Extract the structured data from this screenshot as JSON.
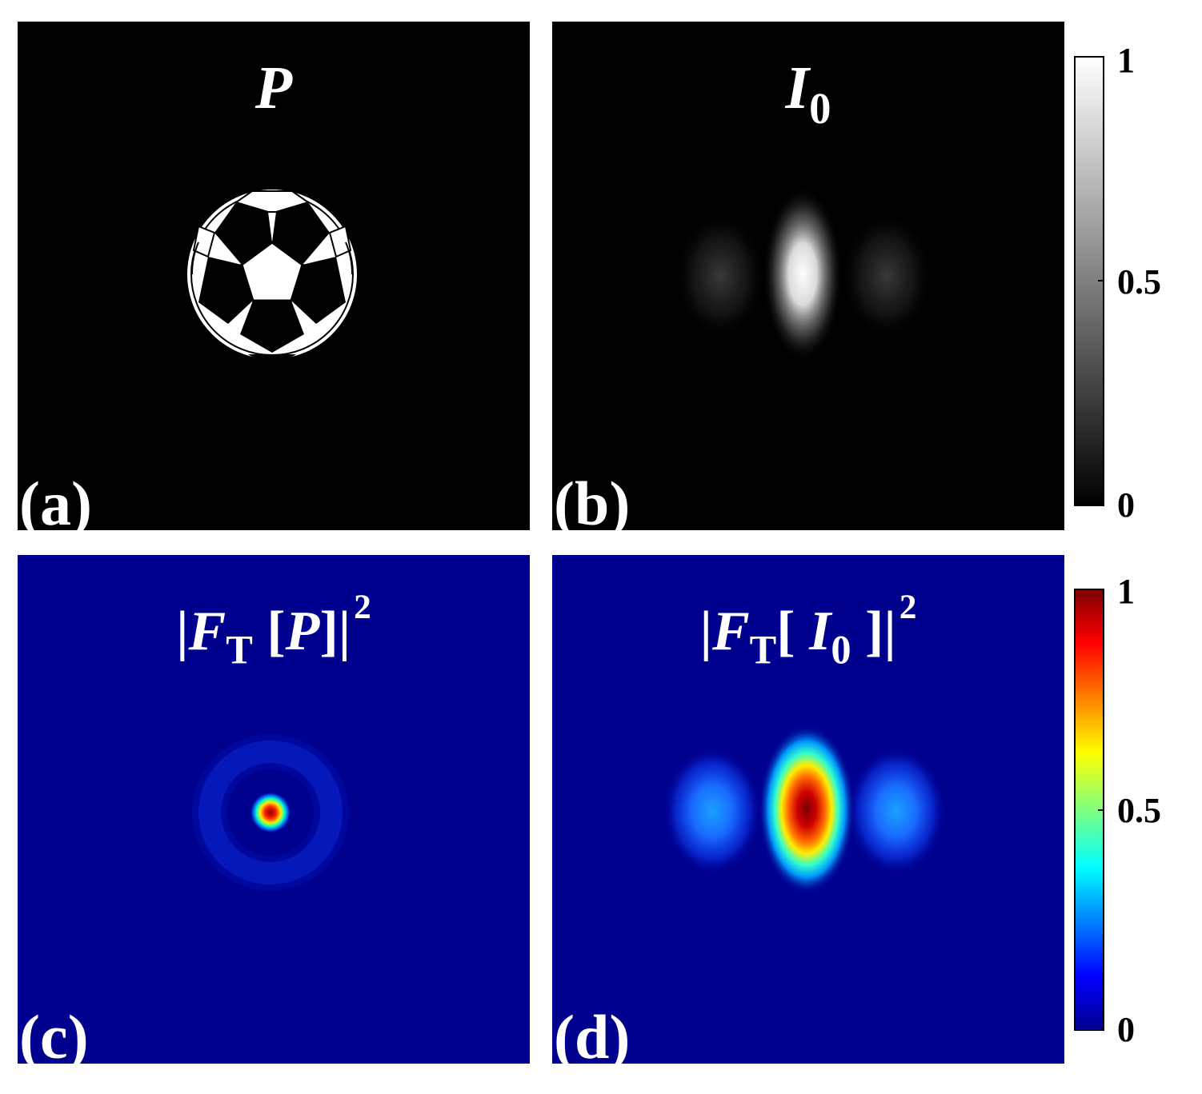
{
  "panels": [
    {
      "id": "a",
      "label": "(a)",
      "title": "P",
      "colormap": "gray"
    },
    {
      "id": "b",
      "label": "(b)",
      "title": "I",
      "title_sub": "0",
      "colormap": "gray"
    },
    {
      "id": "c",
      "label": "(c)",
      "title_pre": "|",
      "title": "F",
      "title_sub": "T",
      "title_post_open": " [",
      "title_arg": "P",
      "title_post_close": "]|",
      "title_sup": "2",
      "colormap": "jet"
    },
    {
      "id": "d",
      "label": "(d)",
      "title_pre": "|",
      "title": "F",
      "title_sub": "T",
      "title_post_open": "[ ",
      "title_arg": "I",
      "title_arg_sub": "0",
      "title_post_close": " ]|",
      "title_sup": "2",
      "colormap": "jet"
    }
  ],
  "colorbars": {
    "gray": {
      "ticks": [
        "1",
        "0.5",
        "0"
      ],
      "range": [
        0,
        1
      ],
      "colormap": "gray"
    },
    "jet": {
      "ticks": [
        "1",
        "0.5",
        "0"
      ],
      "range": [
        0,
        1
      ],
      "colormap": "jet"
    }
  },
  "chart_data": [
    {
      "type": "heatmap",
      "panel": "(a)",
      "title": "P",
      "colormap": "gray",
      "clim": [
        0,
        1
      ],
      "content": "soccer-ball binary pattern centered in field"
    },
    {
      "type": "heatmap",
      "panel": "(b)",
      "title": "I0",
      "colormap": "gray",
      "clim": [
        0,
        1
      ],
      "peaks": [
        {
          "position": "center",
          "value": 1.0
        },
        {
          "position": "left",
          "value": 0.2
        },
        {
          "position": "right",
          "value": 0.2
        }
      ]
    },
    {
      "type": "heatmap",
      "panel": "(c)",
      "title": "|FT[P]|^2",
      "colormap": "jet",
      "clim": [
        0,
        1
      ],
      "peaks": [
        {
          "position": "center",
          "value": 1.0
        }
      ],
      "ring": {
        "value": 0.15
      }
    },
    {
      "type": "heatmap",
      "panel": "(d)",
      "title": "|FT[ I0 ]|^2",
      "colormap": "jet",
      "clim": [
        0,
        1
      ],
      "peaks": [
        {
          "position": "center",
          "value": 1.0
        },
        {
          "position": "left",
          "value": 0.35
        },
        {
          "position": "right",
          "value": 0.35
        }
      ]
    }
  ]
}
